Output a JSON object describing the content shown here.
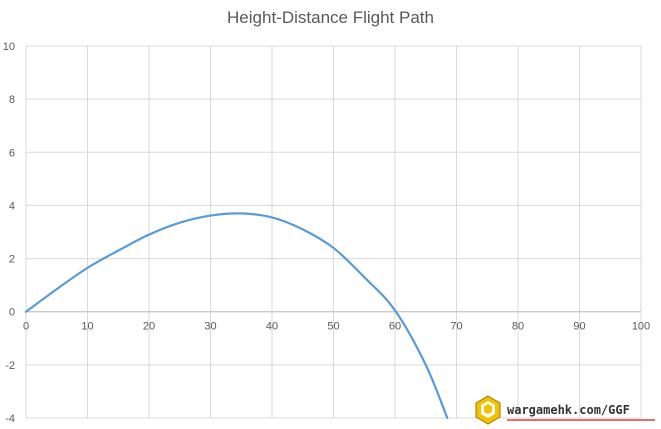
{
  "chart_data": {
    "type": "line",
    "title": "Height-Distance Flight Path",
    "xlabel": "",
    "ylabel": "",
    "xlim": [
      0,
      100
    ],
    "ylim": [
      -4,
      10
    ],
    "x_ticks": [
      0,
      10,
      20,
      30,
      40,
      50,
      60,
      70,
      80,
      90,
      100
    ],
    "y_ticks": [
      -4,
      -2,
      0,
      2,
      4,
      6,
      8,
      10
    ],
    "grid": true,
    "legend": "none",
    "series": [
      {
        "color": "#5b9bd5",
        "x": [
          0,
          5,
          10,
          15,
          20,
          25,
          30,
          35,
          40,
          45,
          50,
          55,
          60,
          65,
          68.5
        ],
        "y": [
          0,
          0.85,
          1.65,
          2.3,
          2.9,
          3.35,
          3.62,
          3.7,
          3.55,
          3.1,
          2.4,
          1.3,
          0.05,
          -2.0,
          -4.0
        ]
      }
    ]
  },
  "watermark": {
    "text": "wargamehk.com/GGF",
    "icon": "ggf-logo-icon",
    "underline_color": "#e53935"
  }
}
